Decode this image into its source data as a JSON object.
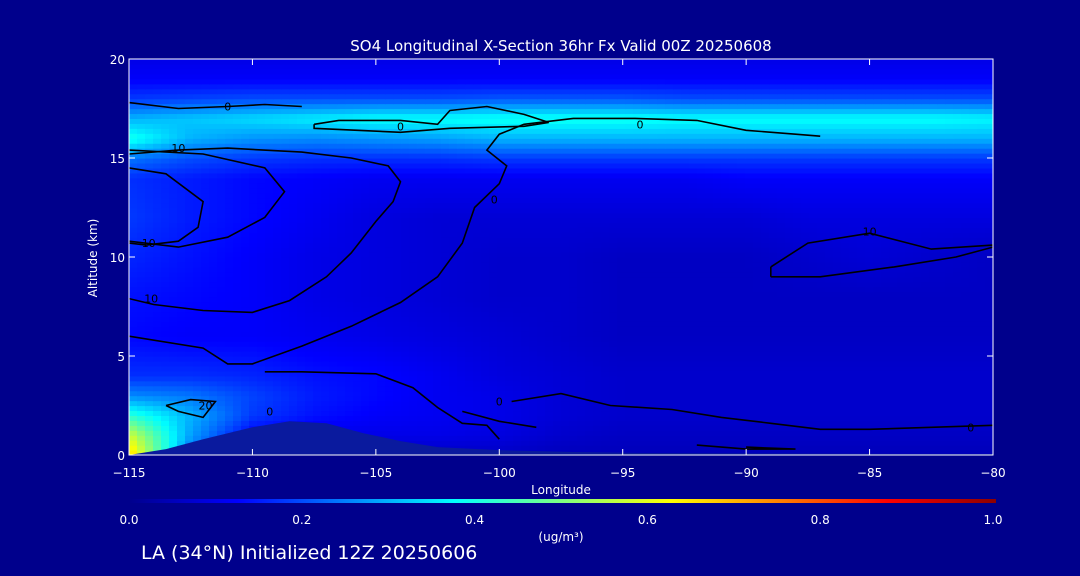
{
  "chart_data": {
    "type": "heatmap",
    "title": "SO4 Longitudinal X-Section 36hr  Fx Valid 00Z 20250608",
    "xlabel": "Longitude",
    "ylabel": "Altitude (km)",
    "xlim": [
      -115,
      -80
    ],
    "ylim": [
      0,
      20
    ],
    "x_ticks": [
      -115,
      -110,
      -105,
      -100,
      -95,
      -90,
      -85,
      -80
    ],
    "x_tick_labels": [
      "−115",
      "−110",
      "−105",
      "−100",
      "−95",
      "−90",
      "−85",
      "−80"
    ],
    "y_ticks": [
      0,
      5,
      10,
      15,
      20
    ],
    "y_tick_labels": [
      "0",
      "5",
      "10",
      "15",
      "20"
    ],
    "colorbar": {
      "label": "(ug/m³)",
      "range": [
        0.0,
        1.0
      ],
      "ticks": [
        0.0,
        0.2,
        0.4,
        0.6,
        0.8,
        1.0
      ],
      "tick_labels": [
        "0.0",
        "0.2",
        "0.4",
        "0.6",
        "0.8",
        "1.0"
      ],
      "colormap": [
        "#00008c",
        "#0000ff",
        "#0080ff",
        "#00ffff",
        "#80ff80",
        "#ffff00",
        "#ff8000",
        "#ff0000",
        "#8c0000"
      ]
    },
    "concentration_field_ug_m3": {
      "altitudes_km": [
        0,
        1,
        2,
        3,
        4,
        6,
        8,
        10,
        12,
        14,
        15,
        16,
        17,
        18,
        19,
        20
      ],
      "longitudes": [
        -115,
        -112.5,
        -110,
        -107.5,
        -105,
        -102.5,
        -100,
        -97.5,
        -95,
        -92.5,
        -90,
        -87.5,
        -85,
        -82.5,
        -80
      ],
      "values": [
        [
          0.68,
          0.22,
          0.1,
          0.06,
          0.06,
          0.06,
          0.06,
          0.05,
          0.05,
          0.05,
          0.05,
          0.05,
          0.05,
          0.05,
          0.05
        ],
        [
          0.58,
          0.28,
          0.12,
          0.1,
          0.1,
          0.1,
          0.09,
          0.07,
          0.06,
          0.06,
          0.06,
          0.06,
          0.06,
          0.06,
          0.06
        ],
        [
          0.42,
          0.3,
          0.18,
          0.14,
          0.12,
          0.11,
          0.1,
          0.08,
          0.07,
          0.07,
          0.07,
          0.07,
          0.07,
          0.07,
          0.07
        ],
        [
          0.26,
          0.24,
          0.19,
          0.15,
          0.13,
          0.11,
          0.1,
          0.08,
          0.07,
          0.07,
          0.07,
          0.07,
          0.07,
          0.07,
          0.07
        ],
        [
          0.17,
          0.17,
          0.16,
          0.14,
          0.13,
          0.11,
          0.09,
          0.08,
          0.07,
          0.07,
          0.07,
          0.07,
          0.07,
          0.07,
          0.07
        ],
        [
          0.13,
          0.12,
          0.12,
          0.11,
          0.1,
          0.09,
          0.08,
          0.07,
          0.06,
          0.06,
          0.06,
          0.06,
          0.06,
          0.06,
          0.06
        ],
        [
          0.14,
          0.13,
          0.12,
          0.1,
          0.09,
          0.08,
          0.07,
          0.07,
          0.06,
          0.06,
          0.06,
          0.06,
          0.06,
          0.06,
          0.06
        ],
        [
          0.16,
          0.14,
          0.12,
          0.1,
          0.09,
          0.08,
          0.07,
          0.07,
          0.06,
          0.06,
          0.06,
          0.07,
          0.08,
          0.07,
          0.06
        ],
        [
          0.18,
          0.15,
          0.13,
          0.11,
          0.09,
          0.08,
          0.08,
          0.08,
          0.08,
          0.08,
          0.08,
          0.09,
          0.09,
          0.09,
          0.09
        ],
        [
          0.17,
          0.15,
          0.13,
          0.12,
          0.11,
          0.11,
          0.11,
          0.11,
          0.11,
          0.11,
          0.12,
          0.12,
          0.12,
          0.12,
          0.12
        ],
        [
          0.24,
          0.2,
          0.18,
          0.17,
          0.17,
          0.17,
          0.18,
          0.18,
          0.18,
          0.18,
          0.18,
          0.18,
          0.18,
          0.18,
          0.18
        ],
        [
          0.4,
          0.3,
          0.27,
          0.26,
          0.27,
          0.28,
          0.3,
          0.3,
          0.3,
          0.3,
          0.3,
          0.3,
          0.3,
          0.3,
          0.3
        ],
        [
          0.3,
          0.32,
          0.34,
          0.36,
          0.38,
          0.38,
          0.39,
          0.39,
          0.39,
          0.38,
          0.38,
          0.38,
          0.38,
          0.38,
          0.37
        ],
        [
          0.18,
          0.19,
          0.2,
          0.2,
          0.2,
          0.2,
          0.21,
          0.21,
          0.21,
          0.2,
          0.2,
          0.2,
          0.2,
          0.2,
          0.2
        ],
        [
          0.12,
          0.12,
          0.12,
          0.12,
          0.12,
          0.12,
          0.12,
          0.12,
          0.12,
          0.12,
          0.12,
          0.12,
          0.12,
          0.12,
          0.12
        ],
        [
          0.1,
          0.1,
          0.1,
          0.1,
          0.1,
          0.1,
          0.1,
          0.1,
          0.1,
          0.1,
          0.1,
          0.1,
          0.1,
          0.1,
          0.1
        ]
      ]
    },
    "terrain_profile_km": [
      [
        -115,
        0
      ],
      [
        -113.5,
        0.3
      ],
      [
        -112,
        0.8
      ],
      [
        -110,
        1.4
      ],
      [
        -108.5,
        1.7
      ],
      [
        -107,
        1.6
      ],
      [
        -105.5,
        1.1
      ],
      [
        -104,
        0.7
      ],
      [
        -102.5,
        0.4
      ],
      [
        -100,
        0.25
      ],
      [
        -97,
        0.15
      ],
      [
        -94,
        0.1
      ],
      [
        -90,
        0.08
      ],
      [
        -85,
        0.06
      ],
      [
        -80,
        0.05
      ]
    ],
    "contour_labels": [
      {
        "text": "0",
        "lon": -111.0,
        "alt": 17.6
      },
      {
        "text": "0",
        "lon": -104.0,
        "alt": 16.6
      },
      {
        "text": "0",
        "lon": -94.3,
        "alt": 16.7
      },
      {
        "text": "10",
        "lon": -113.0,
        "alt": 15.5
      },
      {
        "text": "10",
        "lon": -114.2,
        "alt": 10.7
      },
      {
        "text": "10",
        "lon": -114.1,
        "alt": 7.9
      },
      {
        "text": "10",
        "lon": -85.0,
        "alt": 11.3
      },
      {
        "text": "0",
        "lon": -100.2,
        "alt": 12.9
      },
      {
        "text": "0",
        "lon": -100.0,
        "alt": 2.7
      },
      {
        "text": "0",
        "lon": -80.9,
        "alt": 1.4
      },
      {
        "text": "20",
        "lon": -111.9,
        "alt": 2.5
      },
      {
        "text": "0",
        "lon": -109.3,
        "alt": 2.2
      }
    ],
    "contours": [
      [
        [
          -115,
          17.8
        ],
        [
          -113,
          17.5
        ],
        [
          -111,
          17.6
        ],
        [
          -109.5,
          17.7
        ],
        [
          -108,
          17.6
        ]
      ],
      [
        [
          -115,
          15.2
        ],
        [
          -113,
          15.4
        ],
        [
          -111,
          15.5
        ],
        [
          -108,
          15.3
        ],
        [
          -106,
          15.0
        ],
        [
          -104.5,
          14.6
        ],
        [
          -104,
          13.8
        ],
        [
          -104.3,
          12.8
        ],
        [
          -105,
          11.8
        ],
        [
          -106,
          10.2
        ],
        [
          -107,
          9.0
        ],
        [
          -108.5,
          7.8
        ],
        [
          -110,
          7.2
        ],
        [
          -112,
          7.3
        ],
        [
          -114,
          7.6
        ],
        [
          -115,
          7.9
        ]
      ],
      [
        [
          -115,
          14.5
        ],
        [
          -113.5,
          14.2
        ],
        [
          -112,
          12.8
        ],
        [
          -112.2,
          11.5
        ],
        [
          -113,
          10.8
        ],
        [
          -114.3,
          10.6
        ],
        [
          -115,
          10.7
        ]
      ],
      [
        [
          -115,
          15.4
        ],
        [
          -112,
          15.2
        ],
        [
          -109.5,
          14.5
        ],
        [
          -108.7,
          13.3
        ],
        [
          -109.5,
          12.0
        ],
        [
          -111,
          11.0
        ],
        [
          -113,
          10.5
        ],
        [
          -115,
          10.8
        ]
      ],
      [
        [
          -115,
          6.0
        ],
        [
          -112,
          5.4
        ],
        [
          -111,
          4.6
        ],
        [
          -110,
          4.6
        ],
        [
          -108,
          5.5
        ],
        [
          -106,
          6.5
        ],
        [
          -104,
          7.7
        ],
        [
          -102.5,
          9.0
        ],
        [
          -101.5,
          10.7
        ],
        [
          -101,
          12.5
        ],
        [
          -100,
          13.7
        ],
        [
          -99.7,
          14.6
        ],
        [
          -100.5,
          15.4
        ],
        [
          -100,
          16.2
        ],
        [
          -99,
          16.7
        ],
        [
          -97,
          17.0
        ],
        [
          -94.5,
          17.0
        ],
        [
          -92,
          16.9
        ],
        [
          -90,
          16.4
        ],
        [
          -88,
          16.2
        ],
        [
          -87,
          16.1
        ]
      ],
      [
        [
          -107.5,
          16.7
        ],
        [
          -106.5,
          16.9
        ],
        [
          -104,
          16.9
        ],
        [
          -102.5,
          16.7
        ],
        [
          -102,
          17.4
        ],
        [
          -100.5,
          17.6
        ],
        [
          -99,
          17.2
        ],
        [
          -98,
          16.8
        ],
        [
          -99,
          16.6
        ],
        [
          -102,
          16.5
        ],
        [
          -104,
          16.3
        ],
        [
          -107.5,
          16.5
        ],
        [
          -107.5,
          16.7
        ]
      ],
      [
        [
          -109.5,
          4.2
        ],
        [
          -108,
          4.2
        ],
        [
          -105,
          4.1
        ],
        [
          -103.5,
          3.4
        ],
        [
          -102.5,
          2.4
        ],
        [
          -101.5,
          1.6
        ],
        [
          -100.5,
          1.5
        ],
        [
          -100,
          0.8
        ]
      ],
      [
        [
          -113.5,
          2.5
        ],
        [
          -112.5,
          2.8
        ],
        [
          -111.5,
          2.7
        ],
        [
          -112,
          1.9
        ],
        [
          -113,
          2.2
        ],
        [
          -113.5,
          2.5
        ]
      ],
      [
        [
          -99.5,
          2.7
        ],
        [
          -97.5,
          3.1
        ],
        [
          -95.5,
          2.5
        ],
        [
          -93,
          2.3
        ],
        [
          -91,
          1.9
        ],
        [
          -89,
          1.6
        ],
        [
          -87,
          1.3
        ],
        [
          -85,
          1.3
        ],
        [
          -82.5,
          1.4
        ],
        [
          -80,
          1.5
        ]
      ],
      [
        [
          -101.5,
          2.2
        ],
        [
          -100,
          1.7
        ],
        [
          -98.5,
          1.4
        ]
      ],
      [
        [
          -92,
          0.5
        ],
        [
          -90,
          0.3
        ],
        [
          -88,
          0.3
        ],
        [
          -90,
          0.4
        ]
      ],
      [
        [
          -89,
          9.5
        ],
        [
          -87.5,
          10.7
        ],
        [
          -85,
          11.2
        ],
        [
          -82.5,
          10.4
        ],
        [
          -80,
          10.6
        ]
      ],
      [
        [
          -89,
          9.0
        ],
        [
          -87,
          9.0
        ],
        [
          -84,
          9.5
        ],
        [
          -81.5,
          10.0
        ],
        [
          -80,
          10.5
        ]
      ],
      [
        [
          -89,
          9.0
        ],
        [
          -89,
          9.5
        ]
      ]
    ]
  },
  "footer_text": "LA (34°N) Initialized 12Z 20250606",
  "footer_dims": {
    "lat": "34°N"
  }
}
